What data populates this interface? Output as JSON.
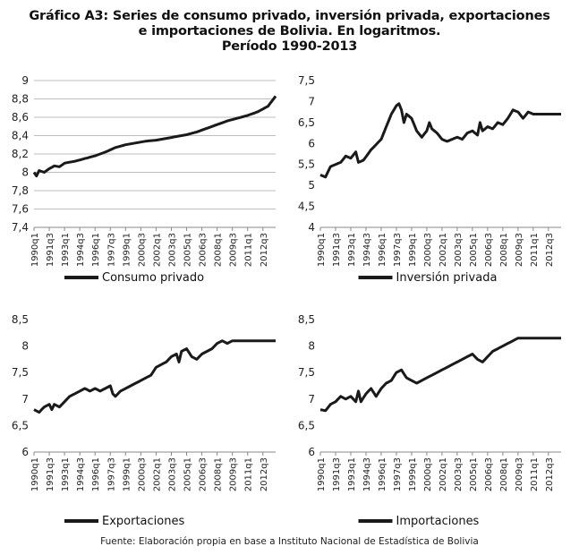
{
  "title": {
    "line1": "Gráfico A3: Series de consumo privado, inversión privada, exportaciones",
    "line2": "e importaciones de Bolivia. En logaritmos.",
    "line3": "Período 1990-2013"
  },
  "source": "Fuente: Elaboración propia en base a Instituto Nacional de Estadística de Bolivia",
  "colors": {
    "line": "#1a1a1a",
    "grid": "#bdbdbd",
    "axis": "#888888"
  },
  "chart_data": [
    {
      "type": "line",
      "x_ticks": [
        "1990q1",
        "1991q3",
        "1993q1",
        "1994q3",
        "1996q1",
        "1997q3",
        "1999q1",
        "2000q3",
        "2002q1",
        "2003q3",
        "2005q1",
        "2006q3",
        "2008q1",
        "2009q3",
        "2011q1",
        "2012q3"
      ],
      "yticks": [
        "7,4",
        "7,6",
        "7,8",
        "8",
        "8,2",
        "8,4",
        "8,6",
        "8,8",
        "9"
      ],
      "ylim": [
        7.4,
        9.0
      ],
      "grid": true,
      "legend_position": "bottom",
      "series": [
        {
          "name": "Consumo privado",
          "x_start": "1990q1",
          "x_end": "2013q4",
          "anchors": [
            [
              0,
              8.0
            ],
            [
              1,
              7.96
            ],
            [
              2,
              8.02
            ],
            [
              4,
              8.0
            ],
            [
              6,
              8.04
            ],
            [
              8,
              8.07
            ],
            [
              10,
              8.06
            ],
            [
              12,
              8.1
            ],
            [
              16,
              8.12
            ],
            [
              20,
              8.15
            ],
            [
              24,
              8.18
            ],
            [
              28,
              8.22
            ],
            [
              32,
              8.27
            ],
            [
              36,
              8.3
            ],
            [
              40,
              8.32
            ],
            [
              44,
              8.34
            ],
            [
              48,
              8.35
            ],
            [
              52,
              8.37
            ],
            [
              56,
              8.39
            ],
            [
              60,
              8.41
            ],
            [
              64,
              8.44
            ],
            [
              68,
              8.48
            ],
            [
              72,
              8.52
            ],
            [
              76,
              8.56
            ],
            [
              80,
              8.59
            ],
            [
              84,
              8.62
            ],
            [
              88,
              8.66
            ],
            [
              92,
              8.72
            ],
            [
              95,
              8.83
            ]
          ]
        }
      ]
    },
    {
      "type": "line",
      "x_ticks": [
        "1990q1",
        "1991q3",
        "1993q1",
        "1994q3",
        "1996q1",
        "1997q3",
        "1999q1",
        "2000q3",
        "2002q1",
        "2003q3",
        "2005q1",
        "2006q3",
        "2008q1",
        "2009q3",
        "2011q1",
        "2012q3"
      ],
      "yticks": [
        "4",
        "4,5",
        "5",
        "5,5",
        "6",
        "6,5",
        "7",
        "7,5"
      ],
      "ylim": [
        4.0,
        7.5
      ],
      "grid": false,
      "legend_position": "bottom",
      "series": [
        {
          "name": "Inversión privada",
          "x_start": "1990q1",
          "x_end": "2013q4",
          "anchors": [
            [
              0,
              5.25
            ],
            [
              2,
              5.2
            ],
            [
              4,
              5.45
            ],
            [
              6,
              5.5
            ],
            [
              8,
              5.55
            ],
            [
              10,
              5.7
            ],
            [
              12,
              5.65
            ],
            [
              14,
              5.8
            ],
            [
              15,
              5.55
            ],
            [
              17,
              5.6
            ],
            [
              20,
              5.85
            ],
            [
              24,
              6.1
            ],
            [
              26,
              6.4
            ],
            [
              28,
              6.7
            ],
            [
              30,
              6.9
            ],
            [
              31,
              6.95
            ],
            [
              32,
              6.8
            ],
            [
              33,
              6.5
            ],
            [
              34,
              6.7
            ],
            [
              36,
              6.6
            ],
            [
              38,
              6.3
            ],
            [
              40,
              6.15
            ],
            [
              42,
              6.3
            ],
            [
              43,
              6.5
            ],
            [
              44,
              6.35
            ],
            [
              46,
              6.25
            ],
            [
              48,
              6.1
            ],
            [
              50,
              6.05
            ],
            [
              52,
              6.1
            ],
            [
              54,
              6.15
            ],
            [
              56,
              6.1
            ],
            [
              58,
              6.25
            ],
            [
              60,
              6.3
            ],
            [
              62,
              6.2
            ],
            [
              63,
              6.5
            ],
            [
              64,
              6.3
            ],
            [
              66,
              6.4
            ],
            [
              68,
              6.35
            ],
            [
              70,
              6.5
            ],
            [
              72,
              6.45
            ],
            [
              74,
              6.6
            ],
            [
              76,
              6.8
            ],
            [
              78,
              6.75
            ],
            [
              80,
              6.6
            ],
            [
              82,
              6.75
            ],
            [
              84,
              6.7
            ]
          ]
        }
      ]
    },
    {
      "type": "line",
      "x_ticks": [
        "1990q1",
        "1991q3",
        "1993q1",
        "1994q3",
        "1996q1",
        "1997q3",
        "1999q1",
        "2000q3",
        "2002q1",
        "2003q3",
        "2005q1",
        "2006q3",
        "2008q1",
        "2009q3",
        "2011q1",
        "2012q3"
      ],
      "yticks": [
        "6",
        "6,5",
        "7",
        "7,5",
        "8",
        "8,5"
      ],
      "ylim": [
        6.0,
        8.5
      ],
      "grid": false,
      "legend_position": "bottom",
      "series": [
        {
          "name": "Exportaciones",
          "x_start": "1990q1",
          "x_end": "2013q4",
          "anchors": [
            [
              0,
              6.8
            ],
            [
              2,
              6.75
            ],
            [
              4,
              6.85
            ],
            [
              6,
              6.9
            ],
            [
              7,
              6.8
            ],
            [
              8,
              6.9
            ],
            [
              10,
              6.85
            ],
            [
              12,
              6.95
            ],
            [
              14,
              7.05
            ],
            [
              16,
              7.1
            ],
            [
              18,
              7.15
            ],
            [
              20,
              7.2
            ],
            [
              22,
              7.15
            ],
            [
              24,
              7.2
            ],
            [
              26,
              7.15
            ],
            [
              28,
              7.2
            ],
            [
              30,
              7.25
            ],
            [
              31,
              7.1
            ],
            [
              32,
              7.05
            ],
            [
              34,
              7.15
            ],
            [
              36,
              7.2
            ],
            [
              38,
              7.25
            ],
            [
              40,
              7.3
            ],
            [
              42,
              7.35
            ],
            [
              44,
              7.4
            ],
            [
              46,
              7.45
            ],
            [
              48,
              7.6
            ],
            [
              50,
              7.65
            ],
            [
              52,
              7.7
            ],
            [
              54,
              7.8
            ],
            [
              56,
              7.85
            ],
            [
              57,
              7.7
            ],
            [
              58,
              7.9
            ],
            [
              60,
              7.95
            ],
            [
              62,
              7.8
            ],
            [
              64,
              7.75
            ],
            [
              66,
              7.85
            ],
            [
              68,
              7.9
            ],
            [
              70,
              7.95
            ],
            [
              72,
              8.05
            ],
            [
              74,
              8.1
            ],
            [
              76,
              8.05
            ],
            [
              78,
              8.1
            ]
          ]
        }
      ]
    },
    {
      "type": "line",
      "x_ticks": [
        "1990q1",
        "1991q3",
        "1993q1",
        "1994q3",
        "1996q1",
        "1997q3",
        "1999q1",
        "2000q3",
        "2002q1",
        "2003q3",
        "2005q1",
        "2006q3",
        "2008q1",
        "2009q3",
        "2011q1",
        "2012q3"
      ],
      "yticks": [
        "6",
        "6,5",
        "7",
        "7,5",
        "8",
        "8,5"
      ],
      "ylim": [
        6.0,
        8.5
      ],
      "grid": false,
      "legend_position": "bottom",
      "series": [
        {
          "name": "Importaciones",
          "x_start": "1990q1",
          "x_end": "2013q4",
          "anchors": [
            [
              0,
              6.8
            ],
            [
              2,
              6.78
            ],
            [
              4,
              6.9
            ],
            [
              6,
              6.95
            ],
            [
              8,
              7.05
            ],
            [
              10,
              7.0
            ],
            [
              12,
              7.05
            ],
            [
              14,
              6.95
            ],
            [
              15,
              7.15
            ],
            [
              16,
              6.95
            ],
            [
              18,
              7.1
            ],
            [
              20,
              7.2
            ],
            [
              22,
              7.05
            ],
            [
              24,
              7.2
            ],
            [
              26,
              7.3
            ],
            [
              28,
              7.35
            ],
            [
              30,
              7.5
            ],
            [
              32,
              7.55
            ],
            [
              34,
              7.4
            ],
            [
              36,
              7.35
            ],
            [
              38,
              7.3
            ],
            [
              40,
              7.35
            ],
            [
              42,
              7.4
            ],
            [
              44,
              7.45
            ],
            [
              46,
              7.5
            ],
            [
              48,
              7.55
            ],
            [
              50,
              7.6
            ],
            [
              52,
              7.65
            ],
            [
              54,
              7.7
            ],
            [
              56,
              7.75
            ],
            [
              58,
              7.8
            ],
            [
              60,
              7.85
            ],
            [
              62,
              7.75
            ],
            [
              64,
              7.7
            ],
            [
              66,
              7.8
            ],
            [
              68,
              7.9
            ],
            [
              70,
              7.95
            ],
            [
              72,
              8.0
            ],
            [
              74,
              8.05
            ],
            [
              76,
              8.1
            ],
            [
              78,
              8.15
            ]
          ]
        }
      ]
    }
  ]
}
